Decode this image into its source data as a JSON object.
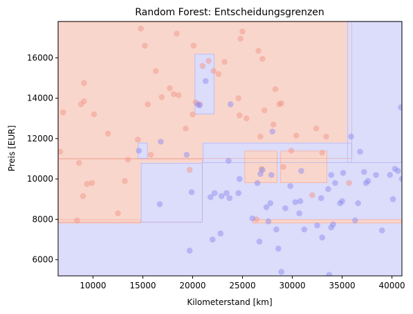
{
  "chart_data": {
    "type": "scatter",
    "title": "Random Forest: Entscheidungsgrenzen",
    "xlabel": "Kilometerstand [km]",
    "ylabel": "Preis [EUR]",
    "xlim": [
      6500,
      41000
    ],
    "ylim": [
      5200,
      17800
    ],
    "xticks": [
      10000,
      15000,
      20000,
      25000,
      30000,
      35000,
      40000
    ],
    "yticks": [
      6000,
      8000,
      10000,
      12000,
      14000,
      16000
    ],
    "grid": false,
    "colors": {
      "class_high_region": "#f9d6cc",
      "class_low_region": "#dcdcfb",
      "class_high_point": "#f2978a",
      "class_low_point": "#8e8ef0",
      "boundary_high": "#f0a090",
      "boundary_low": "#a8a8ee"
    },
    "regions": [
      {
        "class": "low",
        "x": [
          6500,
          41000
        ],
        "y": [
          5200,
          17800
        ]
      },
      {
        "class": "high",
        "x": [
          6500,
          36000
        ],
        "y": [
          11000,
          17800
        ]
      },
      {
        "class": "high",
        "x": [
          6500,
          21000
        ],
        "y": [
          7850,
          11000
        ]
      },
      {
        "class": "high",
        "x": [
          6500,
          14800
        ],
        "y": [
          7800,
          8000
        ]
      },
      {
        "class": "low",
        "x": [
          14800,
          21000
        ],
        "y": [
          7850,
          10800
        ]
      },
      {
        "class": "low",
        "x": [
          21000,
          36000
        ],
        "y": [
          10800,
          11800
        ]
      },
      {
        "class": "high",
        "x": [
          25200,
          28500
        ],
        "y": [
          9800,
          11400
        ]
      },
      {
        "class": "high",
        "x": [
          28800,
          33500
        ],
        "y": [
          9800,
          11400
        ]
      },
      {
        "class": "low",
        "x": [
          20200,
          22200
        ],
        "y": [
          13200,
          16200
        ]
      },
      {
        "class": "low",
        "x": [
          14500,
          15500
        ],
        "y": [
          11000,
          11800
        ]
      },
      {
        "class": "high",
        "x": [
          26000,
          41000
        ],
        "y": [
          7800,
          8000
        ]
      },
      {
        "class": "low",
        "x": [
          35500,
          41000
        ],
        "y": [
          10800,
          17800
        ]
      }
    ],
    "series": [
      {
        "class": "high",
        "points": [
          [
            6700,
            11350
          ],
          [
            7000,
            13300
          ],
          [
            8400,
            7950
          ],
          [
            8600,
            10800
          ],
          [
            8800,
            13700
          ],
          [
            9000,
            9150
          ],
          [
            9100,
            13850
          ],
          [
            9100,
            14750
          ],
          [
            9400,
            9750
          ],
          [
            9900,
            9800
          ],
          [
            10100,
            13200
          ],
          [
            11500,
            12250
          ],
          [
            12500,
            8300
          ],
          [
            13200,
            9900
          ],
          [
            13500,
            10950
          ],
          [
            14500,
            11950
          ],
          [
            14800,
            17450
          ],
          [
            15200,
            16600
          ],
          [
            15500,
            13700
          ],
          [
            16300,
            15350
          ],
          [
            16900,
            14050
          ],
          [
            17700,
            14500
          ],
          [
            18100,
            14200
          ],
          [
            18400,
            17200
          ],
          [
            18600,
            14150
          ],
          [
            19300,
            12500
          ],
          [
            19700,
            10450
          ],
          [
            20000,
            13200
          ],
          [
            20100,
            16600
          ],
          [
            20300,
            13800
          ],
          [
            20700,
            13700
          ],
          [
            21000,
            15600
          ],
          [
            21600,
            15850
          ],
          [
            22100,
            15350
          ],
          [
            22600,
            15200
          ],
          [
            23200,
            15800
          ],
          [
            24600,
            14000
          ],
          [
            24700,
            13150
          ],
          [
            24800,
            16950
          ],
          [
            25000,
            17300
          ],
          [
            25400,
            13000
          ],
          [
            26400,
            8000
          ],
          [
            26600,
            16350
          ],
          [
            26800,
            12100
          ],
          [
            26900,
            10500
          ],
          [
            27000,
            15950
          ],
          [
            27200,
            13400
          ],
          [
            28100,
            12700
          ],
          [
            28300,
            14450
          ],
          [
            28700,
            13700
          ],
          [
            28900,
            13750
          ],
          [
            29100,
            10600
          ],
          [
            29900,
            11400
          ],
          [
            30400,
            12150
          ],
          [
            32000,
            9200
          ],
          [
            32400,
            12500
          ],
          [
            33000,
            11300
          ],
          [
            33400,
            12100
          ],
          [
            35700,
            9800
          ],
          [
            15800,
            11200
          ]
        ]
      },
      {
        "class": "low",
        "points": [
          [
            14600,
            11400
          ],
          [
            16700,
            8750
          ],
          [
            16800,
            11850
          ],
          [
            19400,
            11200
          ],
          [
            19700,
            6450
          ],
          [
            19900,
            9350
          ],
          [
            20500,
            13700
          ],
          [
            20700,
            13650
          ],
          [
            21300,
            14850
          ],
          [
            21800,
            9100
          ],
          [
            22000,
            7000
          ],
          [
            22200,
            9300
          ],
          [
            22800,
            7300
          ],
          [
            22900,
            9150
          ],
          [
            23400,
            9300
          ],
          [
            23600,
            10900
          ],
          [
            23700,
            9050
          ],
          [
            23800,
            13700
          ],
          [
            24600,
            9300
          ],
          [
            24700,
            10000
          ],
          [
            26000,
            8050
          ],
          [
            26500,
            9800
          ],
          [
            26700,
            6900
          ],
          [
            26800,
            10250
          ],
          [
            27000,
            10450
          ],
          [
            27400,
            8600
          ],
          [
            27600,
            7900
          ],
          [
            27800,
            8800
          ],
          [
            27900,
            10200
          ],
          [
            28000,
            12350
          ],
          [
            28400,
            7500
          ],
          [
            28600,
            6550
          ],
          [
            28900,
            5400
          ],
          [
            29300,
            8550
          ],
          [
            29800,
            9650
          ],
          [
            30300,
            8850
          ],
          [
            30700,
            8300
          ],
          [
            30900,
            10400
          ],
          [
            31200,
            7500
          ],
          [
            32500,
            7700
          ],
          [
            32900,
            9050
          ],
          [
            33000,
            7100
          ],
          [
            33600,
            9500
          ],
          [
            33700,
            5250
          ],
          [
            33900,
            10200
          ],
          [
            33900,
            7600
          ],
          [
            34100,
            7750
          ],
          [
            34300,
            9800
          ],
          [
            34800,
            8800
          ],
          [
            35000,
            8900
          ],
          [
            35100,
            10300
          ],
          [
            35900,
            12100
          ],
          [
            36300,
            7950
          ],
          [
            36600,
            8800
          ],
          [
            36800,
            11350
          ],
          [
            37200,
            10350
          ],
          [
            37400,
            9800
          ],
          [
            37600,
            9900
          ],
          [
            38400,
            10200
          ],
          [
            39000,
            7450
          ],
          [
            39800,
            10200
          ],
          [
            40100,
            9000
          ],
          [
            40300,
            10500
          ],
          [
            40600,
            10400
          ],
          [
            40900,
            13550
          ],
          [
            41000,
            10000
          ],
          [
            30800,
            8900
          ]
        ]
      }
    ]
  }
}
